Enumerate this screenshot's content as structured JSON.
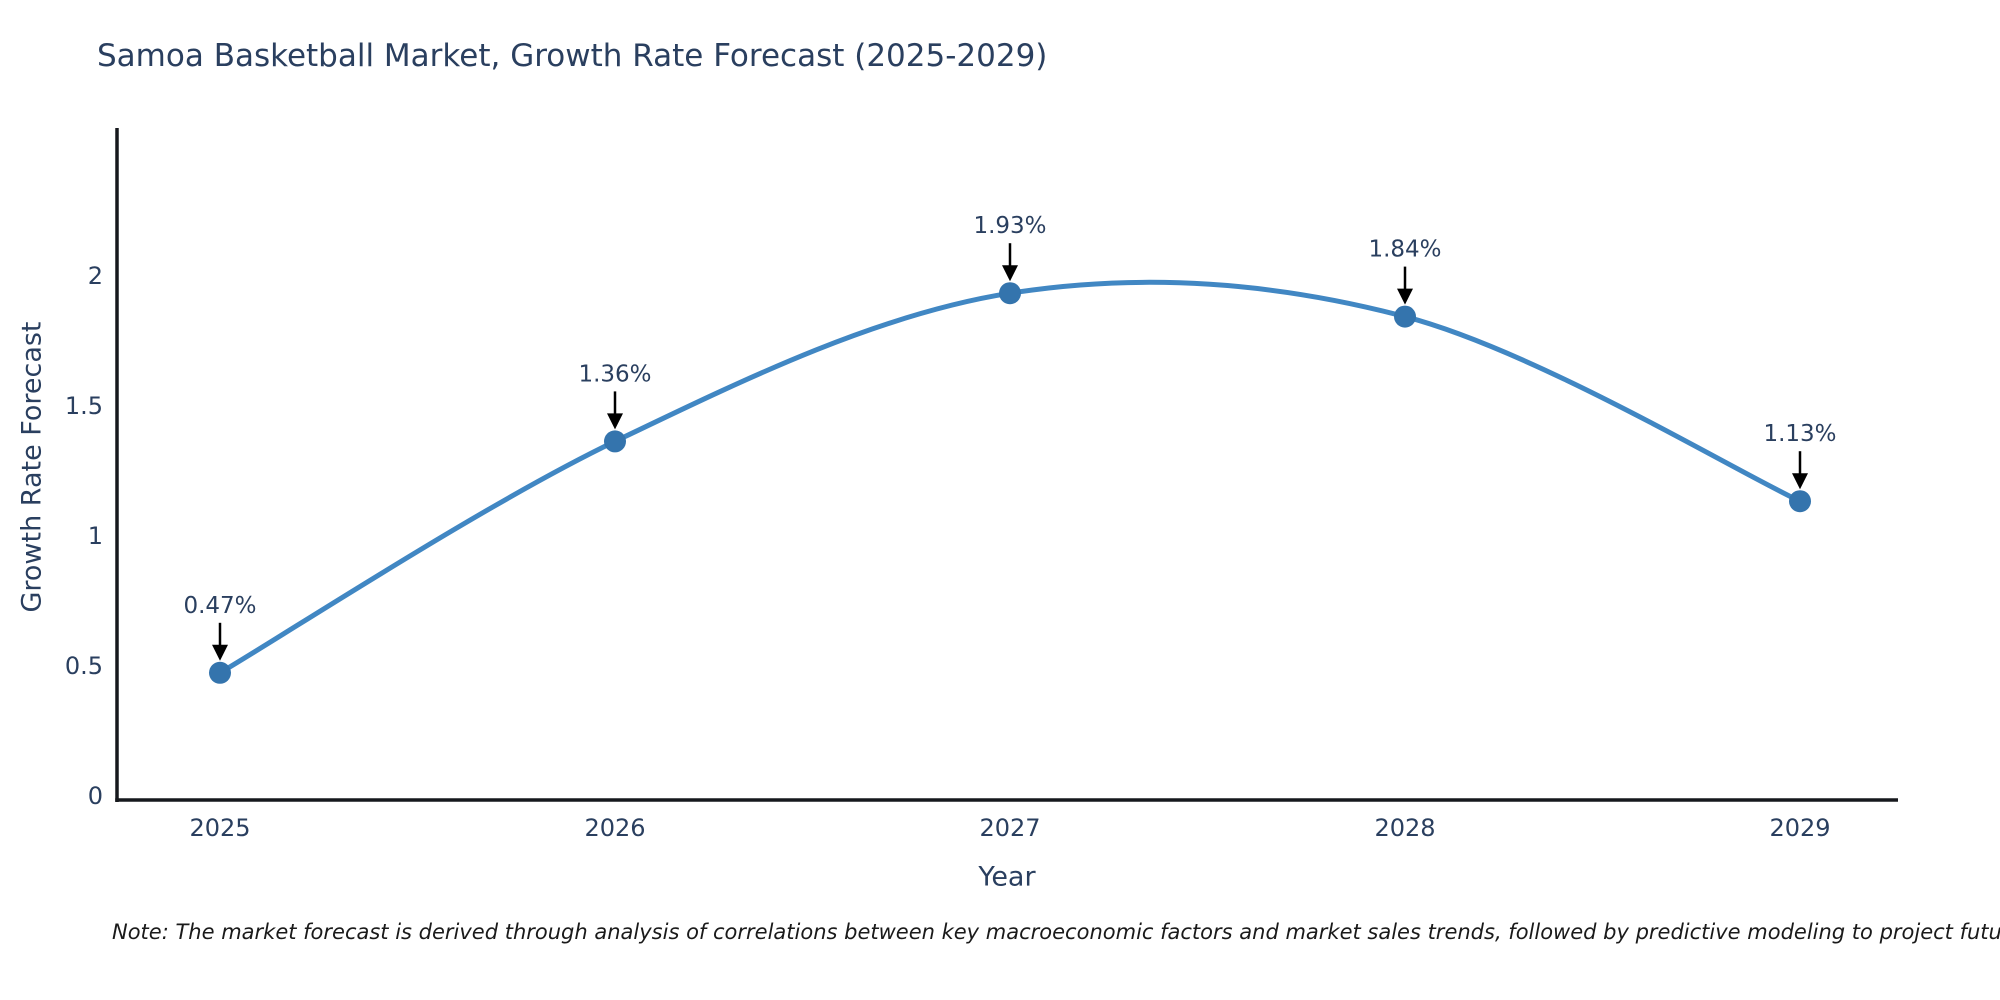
{
  "title": "Samoa Basketball Market, Growth Rate Forecast (2025-2029)",
  "note": "Note: The market forecast is derived through analysis of correlations between key macroeconomic factors and market sales trends, followed by predictive modeling to project future sales",
  "chart_data": {
    "type": "line",
    "title": "Samoa Basketball Market, Growth Rate Forecast (2025-2029)",
    "xlabel": "Year",
    "ylabel": "Growth Rate Forecast",
    "categories": [
      "2025",
      "2026",
      "2027",
      "2028",
      "2029"
    ],
    "values": [
      0.47,
      1.36,
      1.93,
      1.84,
      1.13
    ],
    "point_labels": [
      "0.47%",
      "1.36%",
      "1.93%",
      "1.84%",
      "1.13%"
    ],
    "y_ticks": [
      0,
      0.5,
      1,
      1.5,
      2
    ],
    "y_tick_labels": [
      "0",
      "0.5",
      "1",
      "1.5",
      "2"
    ],
    "ylim": [
      0,
      2.56
    ],
    "line_shape": "spline",
    "grid": false,
    "legend_position": "none",
    "annotations_arrow": "down",
    "colors": {
      "line": "#4187c3",
      "marker": "#3474ad",
      "arrow": "#000000",
      "text": "#2a3f5f",
      "axis": "#16181d",
      "note": "#1a1a1a",
      "background": "#ffffff"
    }
  }
}
